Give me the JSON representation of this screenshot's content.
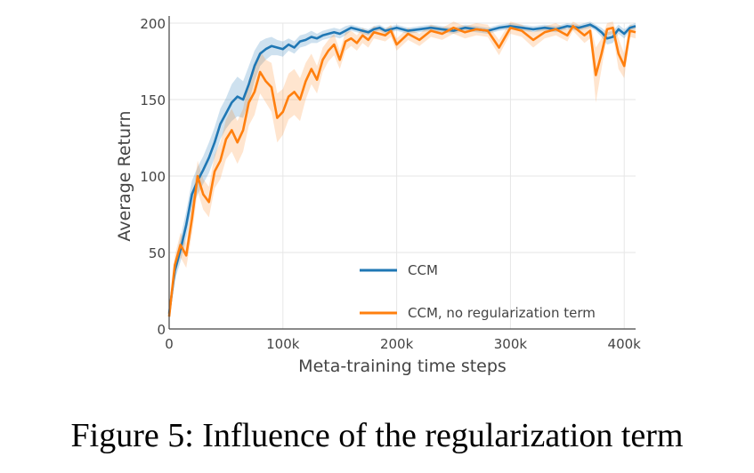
{
  "caption": "Figure 5: Influence of the regularization term",
  "chart_data": {
    "type": "line",
    "title": "",
    "xlabel": "Meta-training time steps",
    "ylabel": "Average Return",
    "xlim": [
      0,
      410000
    ],
    "ylim": [
      0,
      200
    ],
    "x_ticks": [
      0,
      100000,
      200000,
      300000,
      400000
    ],
    "x_tick_labels": [
      "0",
      "100k",
      "200k",
      "300k",
      "400k"
    ],
    "y_ticks": [
      0,
      50,
      100,
      150,
      200
    ],
    "y_tick_labels": [
      "0",
      "50",
      "100",
      "150",
      "200"
    ],
    "grid": true,
    "legend_position": "bottom-right",
    "series": [
      {
        "name": "CCM",
        "color": "#1f77b4",
        "band_color": "#1f77b4",
        "x": [
          0,
          5000,
          10000,
          15000,
          20000,
          25000,
          30000,
          35000,
          40000,
          45000,
          50000,
          55000,
          60000,
          65000,
          70000,
          75000,
          80000,
          85000,
          90000,
          95000,
          100000,
          105000,
          110000,
          115000,
          120000,
          125000,
          130000,
          135000,
          140000,
          145000,
          150000,
          155000,
          160000,
          165000,
          170000,
          175000,
          180000,
          185000,
          190000,
          195000,
          200000,
          210000,
          220000,
          230000,
          240000,
          250000,
          260000,
          270000,
          280000,
          290000,
          300000,
          310000,
          320000,
          330000,
          340000,
          350000,
          360000,
          370000,
          375000,
          380000,
          385000,
          390000,
          395000,
          400000,
          405000,
          410000
        ],
        "y": [
          10,
          38,
          52,
          68,
          88,
          97,
          104,
          112,
          122,
          134,
          141,
          148,
          152,
          150,
          160,
          172,
          180,
          183,
          185,
          184,
          183,
          186,
          184,
          188,
          189,
          191,
          190,
          192,
          193,
          194,
          193,
          195,
          197,
          196,
          195,
          194,
          196,
          197,
          195,
          196,
          197,
          195,
          196,
          197,
          196,
          195,
          197,
          196,
          195,
          197,
          198,
          197,
          196,
          197,
          196,
          198,
          197,
          199,
          197,
          194,
          190,
          191,
          196,
          193,
          197,
          198
        ],
        "band": [
          3,
          6,
          8,
          9,
          9,
          9,
          9,
          10,
          10,
          10,
          10,
          12,
          13,
          12,
          12,
          10,
          8,
          7,
          6,
          5,
          5,
          4,
          4,
          4,
          4,
          4,
          3,
          3,
          3,
          3,
          3,
          3,
          2,
          2,
          2,
          2,
          2,
          2,
          2,
          2,
          2,
          2,
          2,
          2,
          2,
          2,
          2,
          2,
          2,
          2,
          2,
          2,
          2,
          2,
          2,
          2,
          2,
          2,
          2,
          3,
          4,
          4,
          3,
          3,
          2,
          2
        ]
      },
      {
        "name": "CCM, no regularization term",
        "color": "#ff7f0e",
        "band_color": "#ff7f0e",
        "x": [
          0,
          5000,
          10000,
          15000,
          20000,
          25000,
          30000,
          35000,
          40000,
          45000,
          50000,
          55000,
          60000,
          65000,
          70000,
          75000,
          80000,
          85000,
          90000,
          95000,
          100000,
          105000,
          110000,
          115000,
          120000,
          125000,
          130000,
          135000,
          140000,
          145000,
          150000,
          155000,
          160000,
          165000,
          170000,
          175000,
          180000,
          185000,
          190000,
          195000,
          200000,
          210000,
          220000,
          230000,
          240000,
          250000,
          260000,
          270000,
          280000,
          290000,
          300000,
          310000,
          320000,
          330000,
          340000,
          350000,
          355000,
          360000,
          365000,
          370000,
          375000,
          380000,
          385000,
          390000,
          395000,
          400000,
          405000,
          410000
        ],
        "y": [
          8,
          42,
          55,
          48,
          72,
          100,
          88,
          83,
          103,
          110,
          124,
          130,
          122,
          130,
          148,
          155,
          168,
          162,
          158,
          138,
          142,
          152,
          155,
          150,
          162,
          170,
          163,
          176,
          182,
          186,
          176,
          188,
          190,
          187,
          192,
          189,
          194,
          193,
          192,
          195,
          186,
          193,
          189,
          195,
          193,
          197,
          194,
          196,
          195,
          184,
          197,
          195,
          189,
          194,
          196,
          192,
          198,
          195,
          192,
          195,
          166,
          180,
          196,
          197,
          180,
          172,
          195,
          194
        ],
        "band": [
          3,
          6,
          8,
          8,
          10,
          10,
          10,
          10,
          11,
          12,
          13,
          14,
          14,
          14,
          15,
          15,
          14,
          14,
          16,
          16,
          15,
          15,
          15,
          14,
          12,
          10,
          9,
          8,
          7,
          7,
          6,
          6,
          5,
          5,
          5,
          5,
          4,
          4,
          4,
          4,
          4,
          4,
          4,
          4,
          4,
          4,
          4,
          4,
          4,
          5,
          4,
          4,
          5,
          4,
          4,
          4,
          3,
          4,
          5,
          5,
          18,
          10,
          4,
          4,
          10,
          8,
          4,
          4
        ]
      }
    ]
  }
}
